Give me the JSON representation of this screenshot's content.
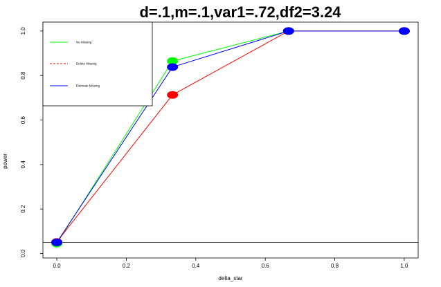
{
  "chart_data": {
    "type": "line",
    "title": "d=.1,m=.1,var1=.72,df2=3.24",
    "xlabel": "delta_star",
    "ylabel": "power",
    "xlim": [
      -0.04,
      1.04
    ],
    "ylim": [
      -0.02,
      1.04
    ],
    "x_ticks": [
      0.0,
      0.2,
      0.4,
      0.6,
      0.8,
      1.0
    ],
    "x_tick_labels": [
      "0.0",
      "0.2",
      "0.4",
      "0.6",
      "0.8",
      "1.0"
    ],
    "y_ticks": [
      0.0,
      0.2,
      0.4,
      0.6,
      0.8,
      1.0
    ],
    "y_tick_labels": [
      "0.0",
      "0.2",
      "0.4",
      "0.6",
      "0.8",
      "1.0"
    ],
    "hline": 0.05,
    "grid": false,
    "legend_position": "top-left",
    "series": [
      {
        "name": "No Missing",
        "color": "#00ff00",
        "line_style": "solid",
        "x": [
          0.0,
          0.333,
          0.667,
          1.0
        ],
        "y": [
          0.045,
          0.865,
          1.0,
          1.0
        ]
      },
      {
        "name": "Delete Missing",
        "color": "#ff0000",
        "line_style": "dashed",
        "x": [
          0.0,
          0.333,
          0.667,
          1.0
        ],
        "y": [
          0.052,
          0.713,
          1.0,
          1.0
        ]
      },
      {
        "name": "Estimate Missing",
        "color": "#0000ff",
        "line_style": "solid",
        "x": [
          0.0,
          0.333,
          0.667,
          1.0
        ],
        "y": [
          0.05,
          0.838,
          1.0,
          1.0
        ]
      }
    ]
  }
}
